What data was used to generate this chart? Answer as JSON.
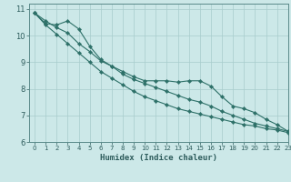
{
  "xlabel": "Humidex (Indice chaleur)",
  "bg_color": "#cce8e8",
  "line_color": "#2d7068",
  "grid_color": "#a8cccc",
  "text_color": "#2d5c5c",
  "axis_color": "#5a8a8a",
  "xlim": [
    -0.5,
    23
  ],
  "ylim": [
    6,
    11.2
  ],
  "xticks": [
    0,
    1,
    2,
    3,
    4,
    5,
    6,
    7,
    8,
    9,
    10,
    11,
    12,
    13,
    14,
    15,
    16,
    17,
    18,
    19,
    20,
    21,
    22,
    23
  ],
  "yticks": [
    6,
    7,
    8,
    9,
    10,
    11
  ],
  "series": {
    "line1": [
      10.85,
      10.45,
      10.4,
      10.55,
      10.25,
      9.6,
      9.1,
      8.85,
      8.65,
      8.45,
      8.3,
      8.3,
      8.3,
      8.25,
      8.3,
      8.3,
      8.1,
      7.7,
      7.35,
      7.25,
      7.1,
      6.85,
      6.65,
      6.4
    ],
    "line2": [
      10.85,
      10.55,
      10.3,
      10.1,
      9.7,
      9.4,
      9.05,
      8.85,
      8.55,
      8.35,
      8.2,
      8.05,
      7.9,
      7.75,
      7.6,
      7.5,
      7.35,
      7.15,
      7.0,
      6.85,
      6.7,
      6.6,
      6.5,
      6.4
    ],
    "line3": [
      10.85,
      10.4,
      10.05,
      9.7,
      9.35,
      9.0,
      8.65,
      8.4,
      8.15,
      7.9,
      7.7,
      7.55,
      7.4,
      7.25,
      7.15,
      7.05,
      6.95,
      6.85,
      6.75,
      6.65,
      6.6,
      6.5,
      6.45,
      6.35
    ]
  },
  "xlabel_fontsize": 6.5,
  "tick_fontsize_x": 5.0,
  "tick_fontsize_y": 6.0
}
